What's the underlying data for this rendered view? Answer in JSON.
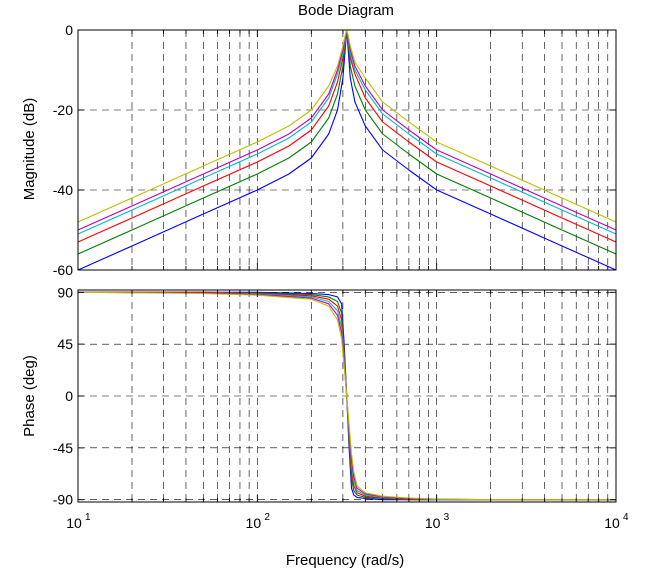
{
  "chart_data": [
    {
      "type": "line",
      "panel": "magnitude",
      "title": "Bode Diagram",
      "xlabel": "",
      "ylabel": "Magnitude (dB)",
      "xscale": "log",
      "xlim": [
        10,
        10000
      ],
      "ylim": [
        -60,
        0
      ],
      "yticks": [
        "0",
        "-20",
        "-40",
        "-60"
      ],
      "grid": true,
      "series_colors": [
        "#0000ff",
        "#008000",
        "#ff0000",
        "#00bfbf",
        "#bf00bf",
        "#bfbf00"
      ],
      "series": [
        {
          "x": [
            10,
            20,
            50,
            100,
            150,
            200,
            250,
            280,
            300,
            310,
            315,
            320,
            330,
            350,
            400,
            500,
            700,
            1000,
            2000,
            5000,
            10000
          ],
          "values": [
            -60,
            -54,
            -46,
            -40,
            -36,
            -32,
            -26,
            -20,
            -12,
            -4,
            0,
            -4,
            -12,
            -18,
            -24,
            -30,
            -35,
            -40,
            -46,
            -54,
            -60
          ]
        },
        {
          "x": [
            10,
            20,
            50,
            100,
            150,
            200,
            250,
            280,
            300,
            310,
            315,
            320,
            330,
            350,
            400,
            500,
            700,
            1000,
            2000,
            5000,
            10000
          ],
          "values": [
            -56,
            -50,
            -42,
            -36,
            -32,
            -28,
            -22,
            -16,
            -9,
            -3,
            0,
            -3,
            -9,
            -14,
            -20,
            -26,
            -31,
            -36,
            -42,
            -50,
            -56
          ]
        },
        {
          "x": [
            10,
            20,
            50,
            100,
            150,
            200,
            250,
            280,
            300,
            310,
            315,
            320,
            330,
            350,
            400,
            500,
            700,
            1000,
            2000,
            5000,
            10000
          ],
          "values": [
            -53,
            -47,
            -39,
            -33,
            -29,
            -25,
            -19,
            -13,
            -7,
            -2,
            0,
            -2,
            -7,
            -11,
            -17,
            -23,
            -28,
            -33,
            -39,
            -47,
            -53
          ]
        },
        {
          "x": [
            10,
            20,
            50,
            100,
            150,
            200,
            250,
            280,
            300,
            310,
            315,
            320,
            330,
            350,
            400,
            500,
            700,
            1000,
            2000,
            5000,
            10000
          ],
          "values": [
            -51,
            -45,
            -37,
            -31,
            -27,
            -23,
            -17,
            -11,
            -6,
            -2,
            0,
            -2,
            -6,
            -10,
            -15,
            -21,
            -26,
            -31,
            -37,
            -45,
            -51
          ]
        },
        {
          "x": [
            10,
            20,
            50,
            100,
            150,
            200,
            250,
            280,
            300,
            310,
            315,
            320,
            330,
            350,
            400,
            500,
            700,
            1000,
            2000,
            5000,
            10000
          ],
          "values": [
            -50,
            -44,
            -36,
            -30,
            -26,
            -22,
            -16,
            -10,
            -5,
            -1.5,
            0,
            -1.5,
            -5,
            -9,
            -14,
            -20,
            -25,
            -30,
            -36,
            -44,
            -50
          ]
        },
        {
          "x": [
            10,
            20,
            50,
            100,
            150,
            200,
            250,
            280,
            300,
            310,
            315,
            320,
            330,
            350,
            400,
            500,
            700,
            1000,
            2000,
            5000,
            10000
          ],
          "values": [
            -48,
            -42,
            -34,
            -28,
            -24,
            -20,
            -14,
            -9,
            -4,
            -1,
            0,
            -1,
            -4,
            -8,
            -12,
            -18,
            -23,
            -28,
            -34,
            -42,
            -48
          ]
        }
      ]
    },
    {
      "type": "line",
      "panel": "phase",
      "xlabel": "Frequency  (rad/s)",
      "ylabel": "Phase (deg)",
      "xscale": "log",
      "xlim": [
        10,
        10000
      ],
      "ylim": [
        -92,
        92
      ],
      "yticks": [
        "90",
        "45",
        "0",
        "-45",
        "-90"
      ],
      "xticks": [
        {
          "base": "10",
          "exp": "1"
        },
        {
          "base": "10",
          "exp": "2"
        },
        {
          "base": "10",
          "exp": "3"
        },
        {
          "base": "10",
          "exp": "4"
        }
      ],
      "grid": true,
      "series_colors": [
        "#0000ff",
        "#008000",
        "#ff0000",
        "#00bfbf",
        "#bf00bf",
        "#bfbf00"
      ],
      "series": [
        {
          "x": [
            10,
            50,
            100,
            200,
            250,
            280,
            295,
            305,
            315,
            325,
            335,
            345,
            360,
            400,
            500,
            700,
            1000,
            2000,
            10000
          ],
          "values": [
            90,
            90,
            90,
            89,
            88,
            86,
            80,
            45,
            0,
            -45,
            -80,
            -86,
            -88,
            -89,
            -90,
            -90,
            -90,
            -90,
            -90
          ]
        },
        {
          "x": [
            10,
            50,
            100,
            200,
            250,
            280,
            295,
            305,
            315,
            325,
            335,
            345,
            360,
            400,
            500,
            700,
            1000,
            2000,
            10000
          ],
          "values": [
            90,
            90,
            89.5,
            88,
            86,
            82,
            72,
            40,
            0,
            -40,
            -72,
            -82,
            -86,
            -88,
            -89,
            -90,
            -90,
            -90,
            -90
          ]
        },
        {
          "x": [
            10,
            50,
            100,
            200,
            250,
            280,
            295,
            305,
            315,
            325,
            335,
            345,
            360,
            400,
            500,
            700,
            1000,
            2000,
            10000
          ],
          "values": [
            90,
            90,
            89,
            87,
            84,
            78,
            66,
            36,
            0,
            -36,
            -66,
            -78,
            -84,
            -87,
            -88.5,
            -89.5,
            -90,
            -90,
            -90
          ]
        },
        {
          "x": [
            10,
            50,
            100,
            200,
            250,
            280,
            295,
            305,
            315,
            325,
            335,
            345,
            360,
            400,
            500,
            700,
            1000,
            2000,
            10000
          ],
          "values": [
            90,
            89.5,
            88.5,
            86,
            82,
            74,
            60,
            32,
            0,
            -32,
            -60,
            -74,
            -82,
            -86,
            -88,
            -89,
            -90,
            -90,
            -90
          ]
        },
        {
          "x": [
            10,
            50,
            100,
            200,
            250,
            280,
            295,
            305,
            315,
            325,
            335,
            345,
            360,
            400,
            500,
            700,
            1000,
            2000,
            10000
          ],
          "values": [
            90,
            89.5,
            88,
            85,
            80,
            70,
            55,
            28,
            0,
            -28,
            -55,
            -70,
            -80,
            -85,
            -87.5,
            -89,
            -89.5,
            -90,
            -90
          ]
        },
        {
          "x": [
            10,
            50,
            100,
            200,
            250,
            280,
            295,
            305,
            315,
            325,
            335,
            345,
            360,
            400,
            500,
            700,
            1000,
            2000,
            10000
          ],
          "values": [
            90,
            89,
            87.5,
            84,
            78,
            66,
            50,
            25,
            0,
            -25,
            -50,
            -66,
            -78,
            -84,
            -87,
            -88.5,
            -89.5,
            -90,
            -90
          ]
        }
      ]
    }
  ]
}
